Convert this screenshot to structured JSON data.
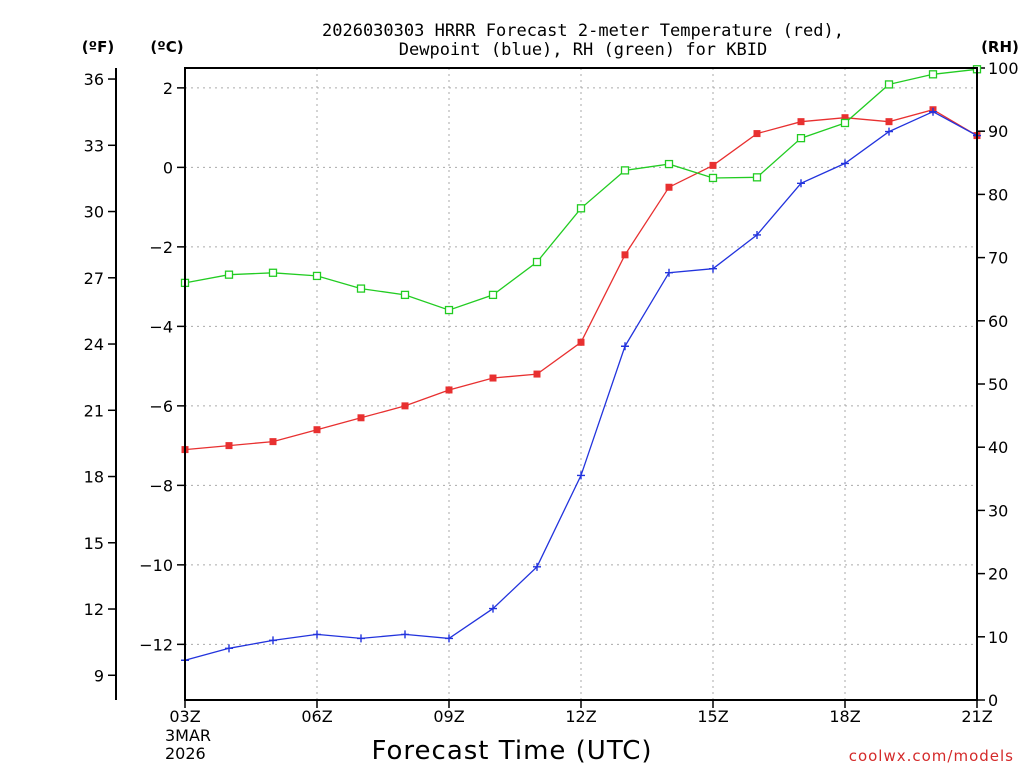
{
  "chart_data": {
    "type": "line",
    "title_line1": "2026030303 HRRR Forecast 2-meter Temperature (red),",
    "title_line2": "Dewpoint (blue), RH (green) for KBID",
    "xlabel": "Forecast Time (UTC)",
    "credit": "coolwx.com/models",
    "unit_labels": {
      "fahrenheit": "(ºF)",
      "celsius": "(ºC)",
      "rh": "(RH)"
    },
    "x_ticks": [
      "03Z",
      "06Z",
      "09Z",
      "12Z",
      "15Z",
      "18Z",
      "21Z"
    ],
    "x_start_date": [
      "3MAR",
      "2026"
    ],
    "x_hours": [
      3,
      4,
      5,
      6,
      7,
      8,
      9,
      10,
      11,
      12,
      13,
      14,
      15,
      16,
      17,
      18,
      19,
      20,
      21
    ],
    "xlim": [
      3,
      21
    ],
    "ylim_celsius": [
      -13.4,
      2.5
    ],
    "ylim_rh": [
      0,
      100
    ],
    "celsius_ticks": [
      2,
      0,
      -2,
      -4,
      -6,
      -8,
      -10,
      -12
    ],
    "fahrenheit_ticks": [
      36,
      33,
      30,
      27,
      24,
      21,
      18,
      15,
      12,
      9
    ],
    "rh_ticks": [
      100,
      90,
      80,
      70,
      60,
      50,
      40,
      30,
      20,
      10,
      0
    ],
    "series": [
      {
        "name": "Temperature",
        "unit": "C",
        "color": "#e83030",
        "marker": "filled-square",
        "values": [
          -7.1,
          -7.0,
          -6.9,
          -6.6,
          -6.3,
          -6.0,
          -5.6,
          -5.3,
          -5.2,
          -4.4,
          -2.2,
          -0.5,
          0.05,
          0.85,
          1.15,
          1.25,
          1.15,
          1.45,
          0.8
        ]
      },
      {
        "name": "Dewpoint",
        "unit": "C",
        "color": "#2233dd",
        "marker": "plus",
        "values": [
          -12.4,
          -12.1,
          -11.9,
          -11.75,
          -11.85,
          -11.75,
          -11.85,
          -11.1,
          -10.05,
          -7.75,
          -4.5,
          -2.65,
          -2.55,
          -1.7,
          -0.4,
          0.1,
          0.9,
          1.4,
          0.8
        ]
      },
      {
        "name": "RH",
        "unit": "%",
        "color": "#22cc22",
        "marker": "open-square",
        "values": [
          66,
          67.3,
          67.6,
          67.1,
          65.1,
          64.1,
          61.7,
          64.1,
          69.3,
          77.8,
          83.8,
          84.8,
          82.6,
          82.7,
          88.9,
          91.3,
          97.4,
          99.0,
          99.8
        ]
      }
    ]
  }
}
